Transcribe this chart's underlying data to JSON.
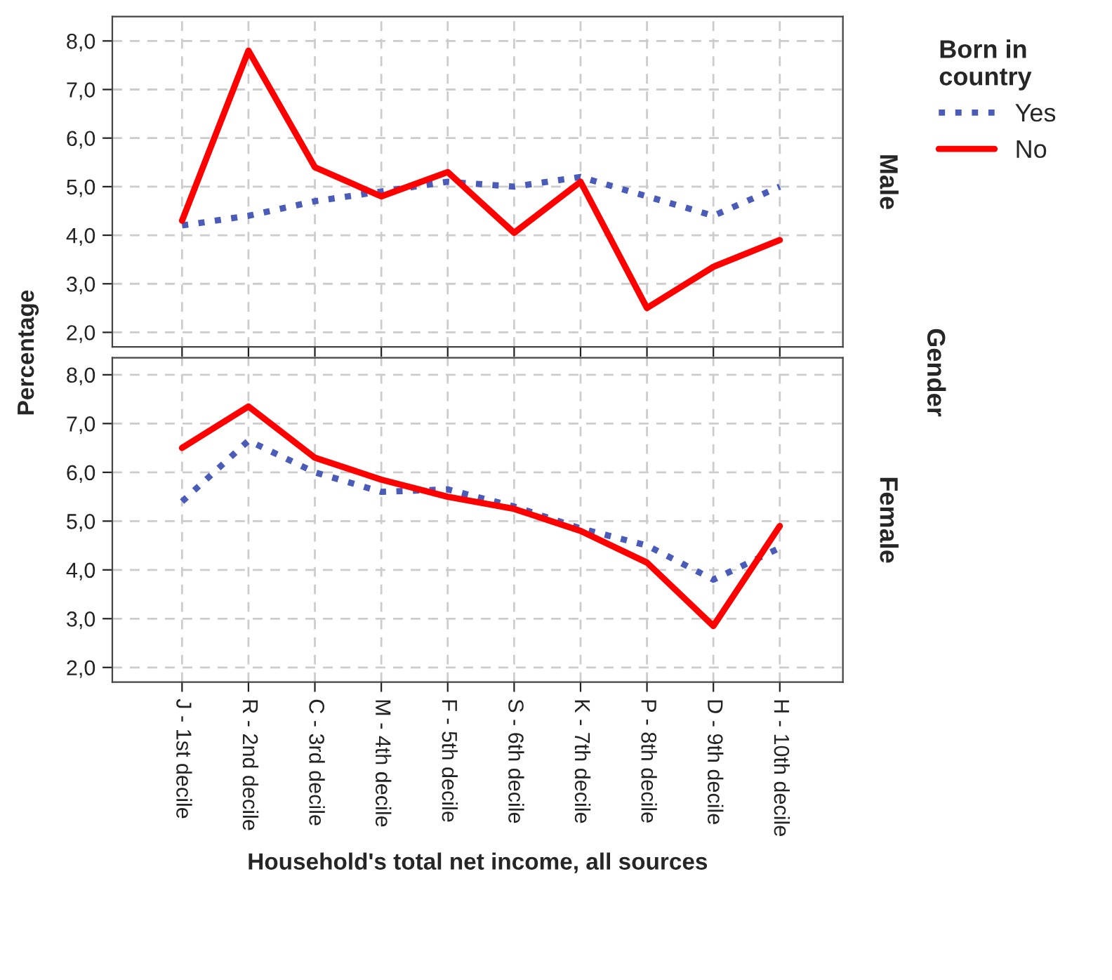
{
  "chart_data": [
    {
      "type": "line",
      "ylabel": "Percentage",
      "legend_title": "Born in\ncountry",
      "legend": "top right",
      "annotations": [
        "Male",
        "Gender"
      ],
      "grid": true,
      "tick_labels": "y",
      "categories": [
        null,
        null,
        null,
        null,
        null,
        null,
        null,
        null,
        null,
        null
      ],
      "ylim": [
        1.7,
        8.5
      ],
      "yticks": [
        {
          "value": 2,
          "label": "2,0"
        },
        {
          "value": 3,
          "label": "3,0"
        },
        {
          "value": 4,
          "label": "4,0"
        },
        {
          "value": 5,
          "label": "5,0"
        },
        {
          "value": 6,
          "label": "6,0"
        },
        {
          "value": 7,
          "label": "7,0"
        },
        {
          "value": 8,
          "label": "8,0"
        }
      ],
      "series": [
        {
          "name": "Yes",
          "color": "#4a5cb8",
          "line_style": "dotted",
          "values": [
            4.2,
            4.4,
            4.7,
            4.9,
            5.1,
            5.0,
            5.2,
            4.8,
            4.4,
            5.0
          ]
        },
        {
          "name": "No",
          "color": "#ff0000",
          "line_style": "solid",
          "values": [
            4.3,
            7.8,
            5.4,
            4.8,
            5.3,
            4.05,
            5.1,
            2.5,
            3.35,
            3.9
          ]
        }
      ]
    },
    {
      "type": "line",
      "annotations": [
        "Female"
      ],
      "xlabel": "Household's total net income, all sources",
      "grid": true,
      "categories": [
        "J - 1st decile",
        "R - 2nd decile",
        "C - 3rd decile",
        "M - 4th decile",
        "F - 5th decile",
        "S - 6th decile",
        "K - 7th decile",
        "P - 8th decile",
        "D - 9th decile",
        "H - 10th decile"
      ],
      "ylim": [
        1.7,
        8.35
      ],
      "yticks": [
        {
          "value": 2,
          "label": "2,0"
        },
        {
          "value": 3,
          "label": "3,0"
        },
        {
          "value": 4,
          "label": "4,0"
        },
        {
          "value": 5,
          "label": "5,0"
        },
        {
          "value": 6,
          "label": "6,0"
        },
        {
          "value": 7,
          "label": "7,0"
        },
        {
          "value": 8,
          "label": "8,0"
        }
      ],
      "series": [
        {
          "color": "#4a5cb8",
          "line_style": "dotted",
          "values": [
            5.4,
            6.65,
            6.0,
            5.6,
            5.65,
            5.3,
            4.85,
            4.5,
            3.8,
            4.45
          ]
        },
        {
          "color": "#ff0000",
          "line_style": "solid",
          "values": [
            6.5,
            7.35,
            6.3,
            5.85,
            5.5,
            5.25,
            4.8,
            4.15,
            2.85,
            4.9
          ]
        }
      ]
    }
  ]
}
